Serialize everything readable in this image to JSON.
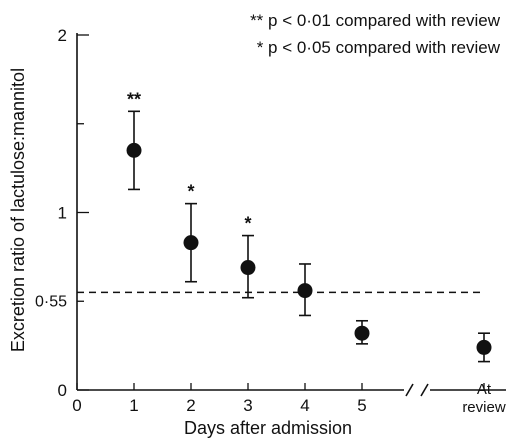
{
  "chart_data": {
    "type": "scatter",
    "xlabel": "Days after admission",
    "ylabel": "Excretion ratio of lactulose:mannitol",
    "ylim": [
      0,
      2
    ],
    "x_ticks": [
      "0",
      "1",
      "2",
      "3",
      "4",
      "5"
    ],
    "y_ticks": [
      "0",
      "1",
      "2"
    ],
    "review_label": [
      "At",
      "review"
    ],
    "legend": [
      "** p < 0·01 compared with review",
      "* p < 0·05 compared with review"
    ],
    "reference_line": {
      "value": 0.55,
      "label": "0·55",
      "style": "dashed"
    },
    "points": [
      {
        "x": "1",
        "y": 1.35,
        "err_low": 1.13,
        "err_high": 1.57,
        "sig": "**"
      },
      {
        "x": "2",
        "y": 0.83,
        "err_low": 0.61,
        "err_high": 1.05,
        "sig": "*"
      },
      {
        "x": "3",
        "y": 0.69,
        "err_low": 0.52,
        "err_high": 0.87,
        "sig": "*"
      },
      {
        "x": "4",
        "y": 0.56,
        "err_low": 0.42,
        "err_high": 0.71,
        "sig": ""
      },
      {
        "x": "5",
        "y": 0.32,
        "err_low": 0.26,
        "err_high": 0.39,
        "sig": ""
      },
      {
        "x": "At review",
        "y": 0.24,
        "err_low": 0.16,
        "err_high": 0.32,
        "sig": ""
      }
    ]
  }
}
